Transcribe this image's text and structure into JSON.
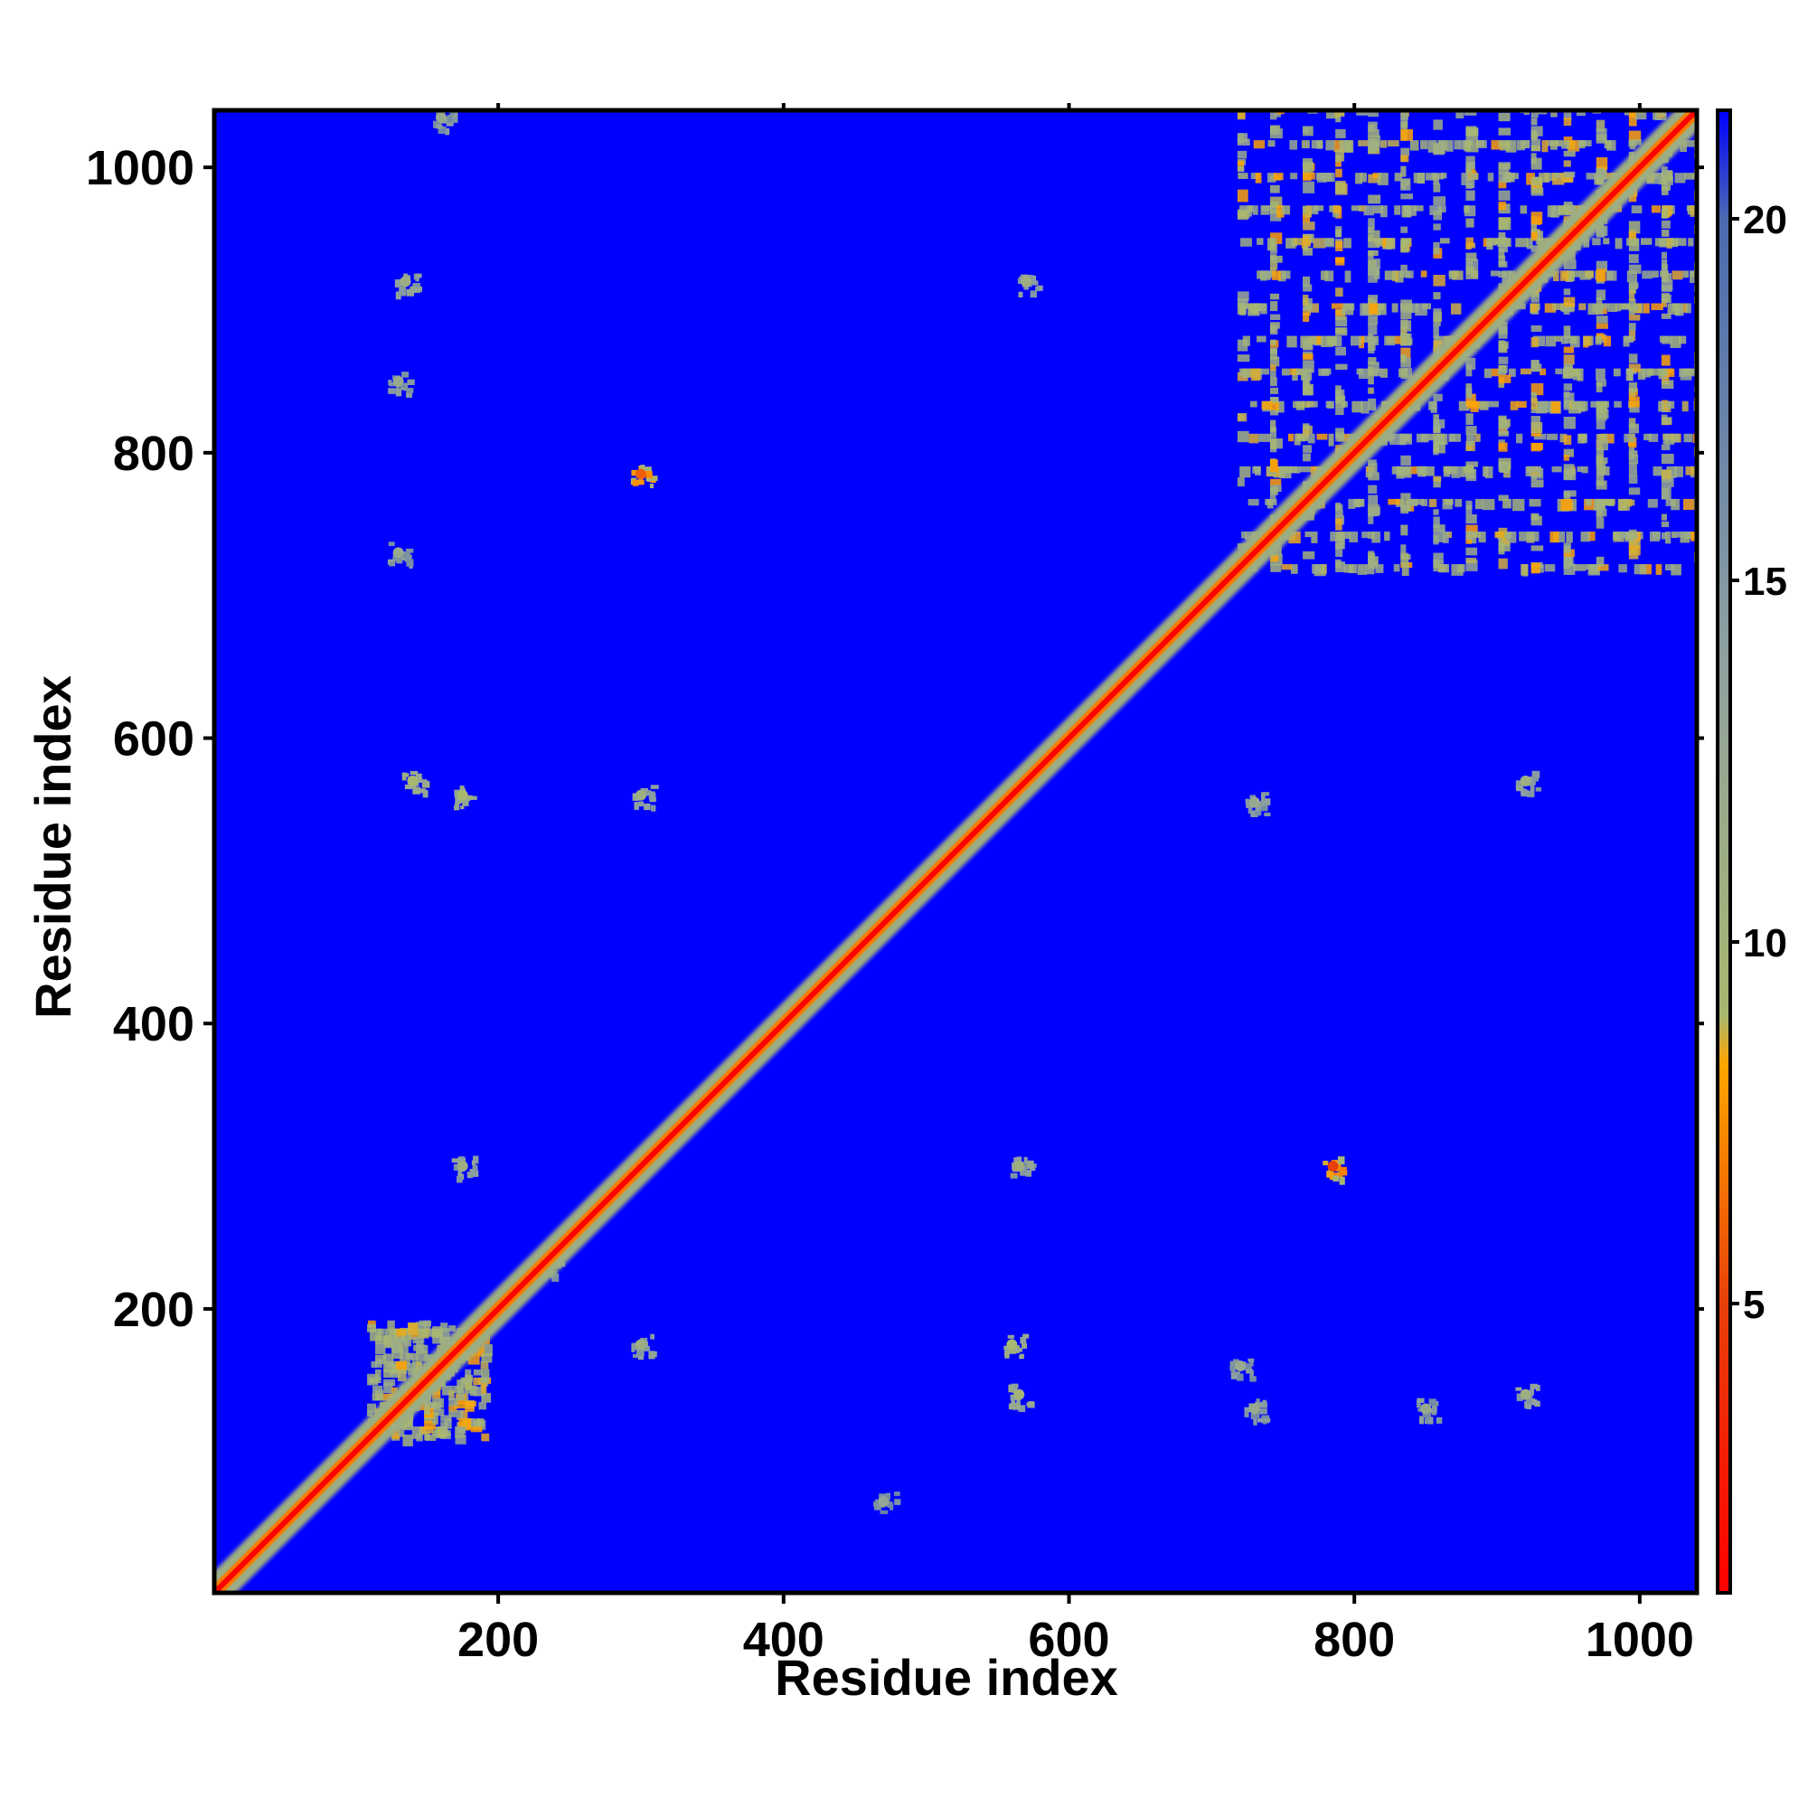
{
  "chart_data": {
    "type": "heatmap",
    "title": "",
    "xlabel": "Residue index",
    "ylabel": "Residue index",
    "xlim": [
      1,
      1040
    ],
    "ylim": [
      1,
      1040
    ],
    "x_ticks": [
      200,
      400,
      600,
      800,
      1000
    ],
    "y_ticks": [
      200,
      400,
      600,
      800,
      1000
    ],
    "colorbar": {
      "range": [
        1,
        21.5
      ],
      "ticks": [
        5,
        10,
        15,
        20
      ],
      "colors": [
        {
          "value": 1,
          "color": "#ff0000"
        },
        {
          "value": 5,
          "color": "#e8400a"
        },
        {
          "value": 8.3,
          "color": "#ffa500"
        },
        {
          "value": 9,
          "color": "#a8b870"
        },
        {
          "value": 14,
          "color": "#8ea0a0"
        },
        {
          "value": 20,
          "color": "#4a6ab0"
        },
        {
          "value": 21.5,
          "color": "#0000ff"
        }
      ]
    },
    "background_color": "#0000ff",
    "diagonal_color": "#ff0000",
    "contact_color": "#9aae8a",
    "description_regions": [
      {
        "x_range": [
          720,
          1040
        ],
        "y_range": [
          720,
          1040
        ],
        "level": 10
      },
      {
        "x_range": [
          110,
          190
        ],
        "y_range": [
          110,
          190
        ],
        "level": 10
      }
    ],
    "off_diagonal_contacts": [
      {
        "x": 300,
        "y": 785,
        "level": 9
      },
      {
        "x": 785,
        "y": 300,
        "level": 8
      },
      {
        "x": 140,
        "y": 570,
        "level": 12
      },
      {
        "x": 175,
        "y": 560,
        "level": 12
      },
      {
        "x": 300,
        "y": 560,
        "level": 14
      },
      {
        "x": 560,
        "y": 175,
        "level": 12
      },
      {
        "x": 565,
        "y": 140,
        "level": 13
      },
      {
        "x": 300,
        "y": 175,
        "level": 14
      },
      {
        "x": 175,
        "y": 300,
        "level": 14
      },
      {
        "x": 565,
        "y": 300,
        "level": 14
      },
      {
        "x": 570,
        "y": 920,
        "level": 14
      },
      {
        "x": 135,
        "y": 920,
        "level": 14
      },
      {
        "x": 130,
        "y": 850,
        "level": 15
      },
      {
        "x": 920,
        "y": 570,
        "level": 14
      },
      {
        "x": 920,
        "y": 140,
        "level": 14
      },
      {
        "x": 850,
        "y": 130,
        "level": 15
      },
      {
        "x": 130,
        "y": 730,
        "level": 15
      },
      {
        "x": 730,
        "y": 130,
        "level": 15
      },
      {
        "x": 160,
        "y": 1035,
        "level": 15
      },
      {
        "x": 235,
        "y": 230,
        "level": 16
      },
      {
        "x": 470,
        "y": 65,
        "level": 16
      },
      {
        "x": 720,
        "y": 160,
        "level": 15
      },
      {
        "x": 730,
        "y": 555,
        "level": 15
      }
    ]
  }
}
